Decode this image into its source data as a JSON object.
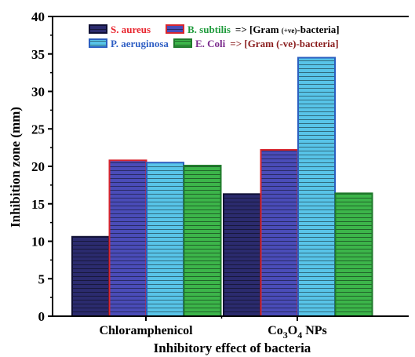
{
  "chart_data": {
    "type": "bar",
    "categories": [
      "Chloramphenicol",
      "Co3O4 NPs"
    ],
    "category_display": [
      {
        "base": "Chloramphenicol"
      },
      {
        "prefix": "Co",
        "sub1": "3",
        "mid": "O",
        "sub2": "4",
        "suffix": " NPs"
      }
    ],
    "series": [
      {
        "name": "S. aureus",
        "values": [
          10.6,
          16.3
        ],
        "fill": "#2b2b6e",
        "stroke": "#101035",
        "label_color": "#e8252e"
      },
      {
        "name": "B. subtilis",
        "values": [
          20.8,
          22.2
        ],
        "fill": "#4a4cb8",
        "stroke": "#d8262f",
        "label_color": "#1e9b3b"
      },
      {
        "name": "P. aeruginosa",
        "values": [
          20.5,
          34.5
        ],
        "fill": "#58c4e8",
        "stroke": "#2a5fc0",
        "label_color": "#2f5fc4"
      },
      {
        "name": "E. Coli",
        "values": [
          20.1,
          16.4
        ],
        "fill": "#3cb54a",
        "stroke": "#1f7a2b",
        "label_color": "#7a2a8c"
      }
    ],
    "legend_notes": [
      {
        "prefix": "=> [Gram ",
        "small": "(+ve)",
        "suffix": "-bacteria]",
        "color": "#000000"
      },
      {
        "prefix": "=> [Gram (-ve)-bacteria]",
        "small": "",
        "suffix": "",
        "color": "#8a1d1d"
      }
    ],
    "xlabel": "Inhibitory effect of bacteria",
    "ylabel": "Inhibition zone (mm)",
    "ylim": [
      0,
      40
    ],
    "yticks": [
      0,
      5,
      10,
      15,
      20,
      25,
      30,
      35,
      40
    ],
    "legend_position": "top-center",
    "grid": false
  }
}
